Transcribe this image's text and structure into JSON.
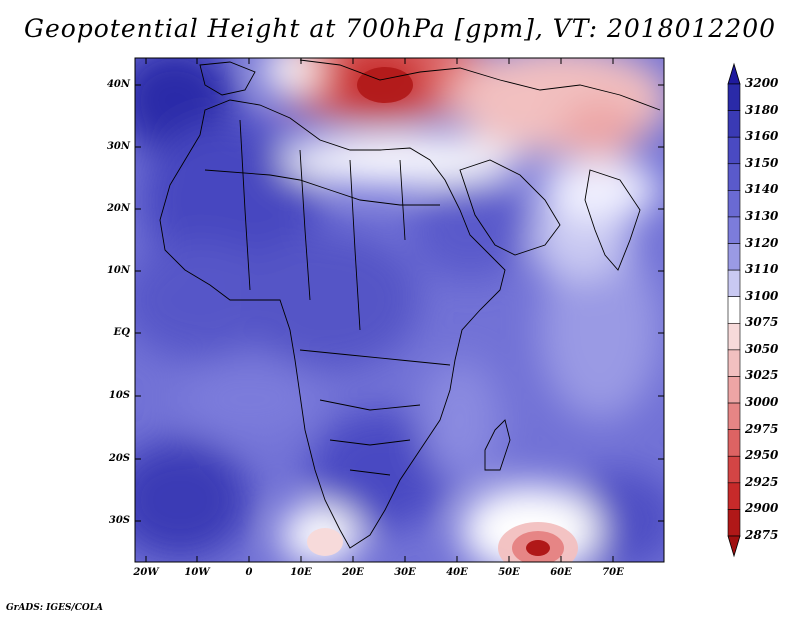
{
  "title": "Geopotential Height at 700hPa [gpm], VT: 2018012200",
  "credit": "GrADS: IGES/COLA",
  "lat_labels": [
    "40N",
    "30N",
    "20N",
    "10N",
    "EQ",
    "10S",
    "20S",
    "30S"
  ],
  "lon_labels": [
    "20W",
    "10W",
    "0",
    "10E",
    "20E",
    "30E",
    "40E",
    "50E",
    "60E",
    "70E"
  ],
  "colorbar": {
    "levels": [
      "3200",
      "3180",
      "3160",
      "3150",
      "3140",
      "3130",
      "3120",
      "3110",
      "3100",
      "3075",
      "3050",
      "3025",
      "3000",
      "2975",
      "2950",
      "2925",
      "2900",
      "2875"
    ],
    "colors": [
      "#1f1a9e",
      "#2a2aa8",
      "#3a3ab5",
      "#4a4ac2",
      "#5a5acb",
      "#6a6ad3",
      "#7c7cdb",
      "#9a9ae4",
      "#c9c9f2",
      "#ffffff",
      "#f7dada",
      "#f2c0c0",
      "#eda5a5",
      "#e68585",
      "#dd6363",
      "#d34545",
      "#c72a2a",
      "#b01818",
      "#a01010"
    ]
  },
  "colors": {
    "land_border": "#000000",
    "frame": "#000000"
  }
}
